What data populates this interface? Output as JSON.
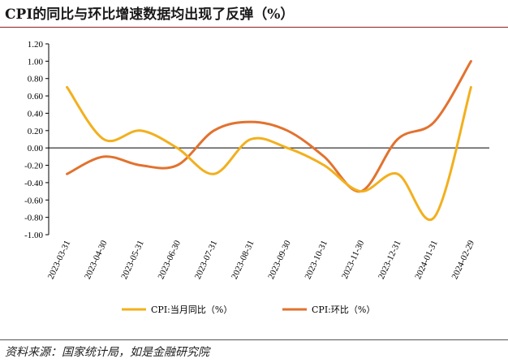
{
  "title": "CPI的同比与环比增速数据均出现了反弹（%）",
  "source": "资料来源：国家统计局，如是金融研究院",
  "colors": {
    "yoy": "#f2b01e",
    "mom": "#e2722f",
    "axis": "#000000"
  },
  "chart_data": {
    "type": "line",
    "title": "CPI的同比与环比增速数据均出现了反弹（%）",
    "xlabel": "",
    "ylabel": "",
    "ylim": [
      -1.0,
      1.2
    ],
    "yticks": [
      "1.20",
      "1.00",
      "0.80",
      "0.60",
      "0.40",
      "0.20",
      "0.00",
      "-0.20",
      "-0.40",
      "-0.60",
      "-0.80",
      "-1.00"
    ],
    "categories": [
      "2023-03-31",
      "2023-04-30",
      "2023-05-31",
      "2023-06-30",
      "2023-07-31",
      "2023-08-31",
      "2023-09-30",
      "2023-10-31",
      "2023-11-30",
      "2023-12-31",
      "2024-01-31",
      "2024-02-29"
    ],
    "series": [
      {
        "name": "CPI:当月同比（%）",
        "values": [
          0.7,
          0.1,
          0.2,
          0.0,
          -0.3,
          0.1,
          0.0,
          -0.2,
          -0.5,
          -0.3,
          -0.8,
          0.7
        ]
      },
      {
        "name": "CPI:环比（%）",
        "values": [
          -0.3,
          -0.1,
          -0.2,
          -0.2,
          0.2,
          0.3,
          0.2,
          -0.1,
          -0.5,
          0.1,
          0.3,
          1.0
        ]
      }
    ],
    "legend": "bottom"
  }
}
